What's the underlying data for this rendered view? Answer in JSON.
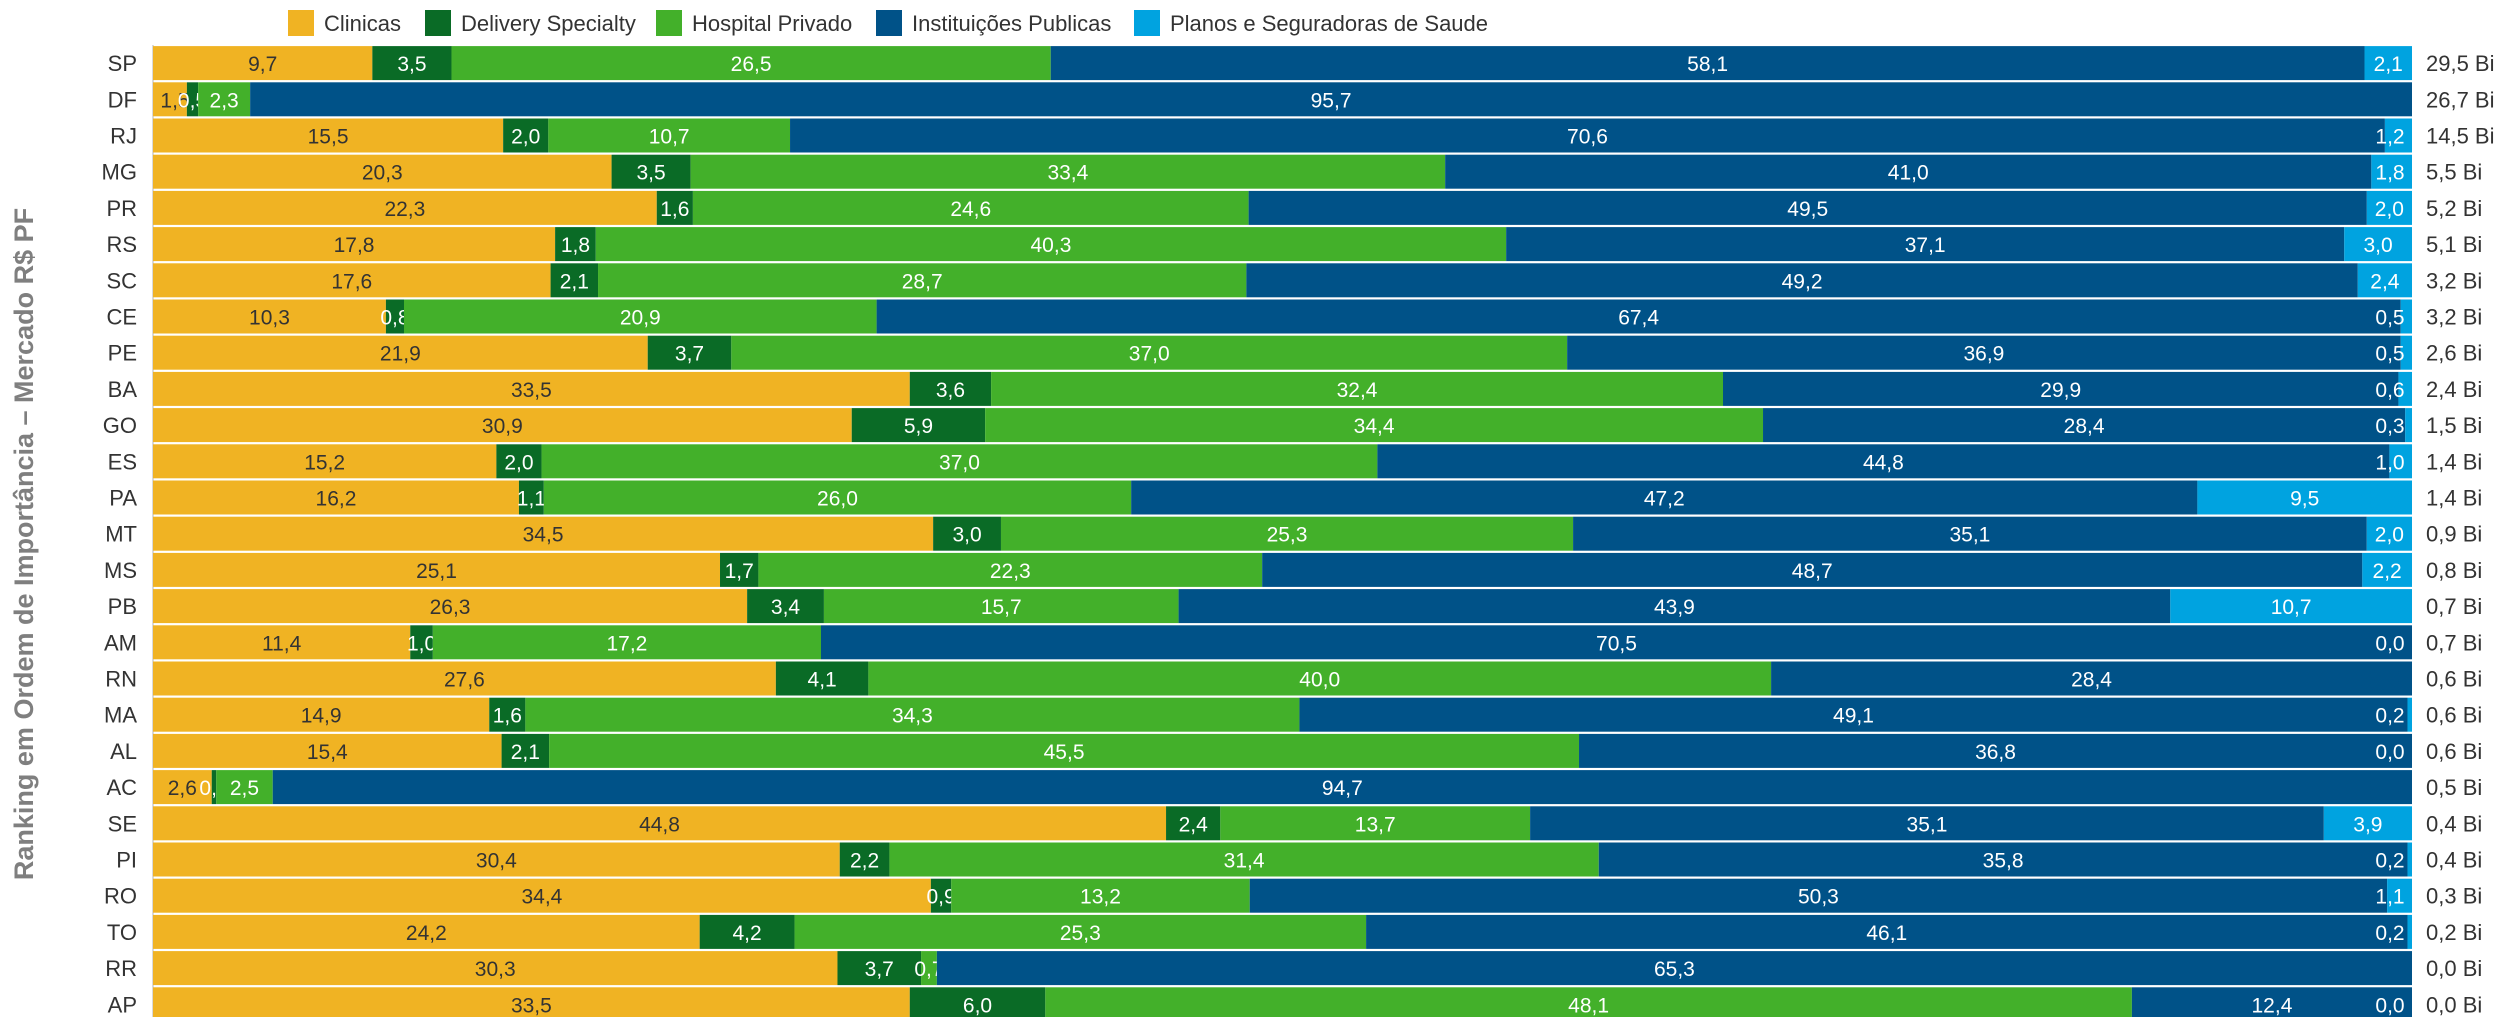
{
  "colors": {
    "clinicas": "#f0b323",
    "delivery": "#0a6b26",
    "hospital": "#43b02a",
    "instituicoes": "#005288",
    "planos": "#00a3e0"
  },
  "chart_data": {
    "type": "bar",
    "orientation": "horizontal",
    "stacked": "percent",
    "ylabel": "Ranking em Ordem de Importância – Mercado  R$ PF",
    "legend_position": "top",
    "series": [
      {
        "name": "Clinicas",
        "color": "#f0b323",
        "values": [
          9.7,
          1.5,
          15.5,
          20.3,
          22.3,
          17.8,
          17.6,
          10.3,
          21.9,
          33.5,
          30.9,
          15.2,
          16.2,
          34.5,
          25.1,
          26.3,
          11.4,
          27.6,
          14.9,
          15.4,
          2.6,
          44.8,
          30.4,
          34.4,
          24.2,
          30.3,
          33.5
        ],
        "labels": [
          "9,7",
          "1,5",
          "15,5",
          "20,3",
          "22,3",
          "17,8",
          "17,6",
          "10,3",
          "21,9",
          "33,5",
          "30,9",
          "15,2",
          "16,2",
          "34,5",
          "25,1",
          "26,3",
          "11,4",
          "27,6",
          "14,9",
          "15,4",
          "2,6",
          "44,8",
          "30,4",
          "34,4",
          "24,2",
          "30,3",
          "33,5"
        ]
      },
      {
        "name": "Delivery Specialty",
        "color": "#0a6b26",
        "values": [
          3.5,
          0.5,
          2.0,
          3.5,
          1.6,
          1.8,
          2.1,
          0.8,
          3.7,
          3.6,
          5.9,
          2.0,
          1.1,
          3.0,
          1.7,
          3.4,
          1.0,
          4.1,
          1.6,
          2.1,
          0.2,
          2.4,
          2.2,
          0.9,
          4.2,
          3.7,
          6.0
        ],
        "labels": [
          "3,5",
          "0,5",
          "2,0",
          "3,5",
          "1,6",
          "1,8",
          "2,1",
          "0,8",
          "3,7",
          "3,6",
          "5,9",
          "2,0",
          "1,1",
          "3,0",
          "1,7",
          "3,4",
          "1,0",
          "4,1",
          "1,6",
          "2,1",
          "0,2",
          "2,4",
          "2,2",
          "0,9",
          "4,2",
          "3,7",
          "6,0"
        ]
      },
      {
        "name": "Hospital Privado",
        "color": "#43b02a",
        "values": [
          26.5,
          2.3,
          10.7,
          33.4,
          24.6,
          40.3,
          28.7,
          20.9,
          37.0,
          32.4,
          34.4,
          37.0,
          26.0,
          25.3,
          22.3,
          15.7,
          17.2,
          40.0,
          34.3,
          45.5,
          2.5,
          13.7,
          31.4,
          13.2,
          25.3,
          0.7,
          48.1
        ],
        "labels": [
          "26,5",
          "2,3",
          "10,7",
          "33,4",
          "24,6",
          "40,3",
          "28,7",
          "20,9",
          "37,0",
          "32,4",
          "34,4",
          "37,0",
          "26,0",
          "25,3",
          "22,3",
          "15,7",
          "17,2",
          "40,0",
          "34,3",
          "45,5",
          "2,5",
          "13,7",
          "31,4",
          "13,2",
          "25,3",
          "0,7",
          "48,1"
        ]
      },
      {
        "name": "Instituições Publicas",
        "color": "#005288",
        "values": [
          58.1,
          95.7,
          70.6,
          41.0,
          49.5,
          37.1,
          49.2,
          67.4,
          36.9,
          29.9,
          28.4,
          44.8,
          47.2,
          35.1,
          48.7,
          43.9,
          70.5,
          28.4,
          49.1,
          36.8,
          94.7,
          35.1,
          35.8,
          50.3,
          46.1,
          65.3,
          12.4
        ],
        "labels": [
          "58,1",
          "95,7",
          "70,6",
          "41,0",
          "49,5",
          "37,1",
          "49,2",
          "67,4",
          "36,9",
          "29,9",
          "28,4",
          "44,8",
          "47,2",
          "35,1",
          "48,7",
          "43,9",
          "70,5",
          "28,4",
          "49,1",
          "36,8",
          "94,7",
          "35,1",
          "35,8",
          "50,3",
          "46,1",
          "65,3",
          "12,4"
        ]
      },
      {
        "name": "Planos e Seguradoras de Saude",
        "color": "#00a3e0",
        "values": [
          2.1,
          0,
          1.2,
          1.8,
          2.0,
          3.0,
          2.4,
          0.5,
          0.5,
          0.6,
          0.3,
          1.0,
          9.5,
          2.0,
          2.2,
          10.7,
          0.0,
          0,
          0.2,
          0.0,
          0,
          3.9,
          0.2,
          1.1,
          0.2,
          0,
          0.0
        ],
        "labels": [
          "2,1",
          "",
          "1,2",
          "1,8",
          "2,0",
          "3,0",
          "2,4",
          "0,5",
          "0,5",
          "0,6",
          "0,3",
          "1,0",
          "9,5",
          "2,0",
          "2,2",
          "10,7",
          "0,0",
          "",
          "0,2",
          "0,0",
          "",
          "3,9",
          "0,2",
          "1,1",
          "0,2",
          "",
          "0,0"
        ]
      }
    ],
    "categories": [
      "SP",
      "DF",
      "RJ",
      "MG",
      "PR",
      "RS",
      "SC",
      "CE",
      "PE",
      "BA",
      "GO",
      "ES",
      "PA",
      "MT",
      "MS",
      "PB",
      "AM",
      "RN",
      "MA",
      "AL",
      "AC",
      "SE",
      "PI",
      "RO",
      "TO",
      "RR",
      "AP"
    ],
    "totals": [
      "29,5 Bi",
      "26,7 Bi",
      "14,5 Bi",
      "5,5 Bi",
      "5,2 Bi",
      "5,1 Bi",
      "3,2 Bi",
      "3,2 Bi",
      "2,6 Bi",
      "2,4 Bi",
      "1,5 Bi",
      "1,4 Bi",
      "1,4 Bi",
      "0,9 Bi",
      "0,8 Bi",
      "0,7 Bi",
      "0,7 Bi",
      "0,6 Bi",
      "0,6 Bi",
      "0,6 Bi",
      "0,5 Bi",
      "0,4 Bi",
      "0,4 Bi",
      "0,3 Bi",
      "0,2 Bi",
      "0,0 Bi",
      "0,0 Bi"
    ]
  }
}
